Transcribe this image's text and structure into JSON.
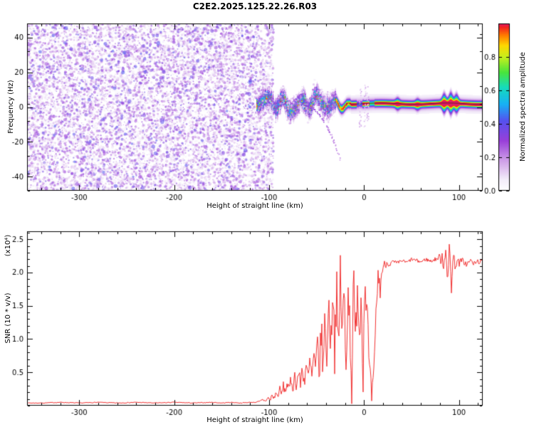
{
  "title": "C2E2.2025.125.22.26.R03",
  "chart_data": [
    {
      "type": "heatmap",
      "id": "spectrogram",
      "title": "C2E2.2025.125.22.26.R03",
      "xlabel": "Height of straight line (km)",
      "ylabel": "Frequency (Hz)",
      "xlim": [
        -355,
        125
      ],
      "ylim": [
        -48,
        48
      ],
      "xticks": [
        -300,
        -200,
        -100,
        0,
        100
      ],
      "xtick_labels": [
        "-300",
        "-200",
        "-100",
        "0",
        "100"
      ],
      "x_minor_step": 20,
      "yticks": [
        -40,
        -20,
        0,
        20,
        40
      ],
      "ytick_labels": [
        "-40",
        "-20",
        "0",
        "20",
        "40"
      ],
      "y_minor_step": 10,
      "grid": false,
      "colorbar": {
        "label": "Normalized spectral amplitude",
        "range": [
          0,
          1
        ],
        "tick_values": [
          0,
          0.2,
          0.4,
          0.6,
          0.8
        ],
        "tick_labels": [
          "0.0",
          "0.2",
          "0.4",
          "0.6",
          "0.8"
        ]
      },
      "colormap_stops": [
        [
          0,
          "#ffffff"
        ],
        [
          0.07,
          "#f3ecf9"
        ],
        [
          0.18,
          "#cfa0e8"
        ],
        [
          0.3,
          "#993fd9"
        ],
        [
          0.42,
          "#5551ef"
        ],
        [
          0.52,
          "#17b2f5"
        ],
        [
          0.62,
          "#16dcbc"
        ],
        [
          0.71,
          "#49e43c"
        ],
        [
          0.8,
          "#c6ef1e"
        ],
        [
          0.87,
          "#fed801"
        ],
        [
          0.93,
          "#ff7d00"
        ],
        [
          0.98,
          "#f32121"
        ],
        [
          1,
          "#dd1a67"
        ]
      ],
      "noise_region": {
        "x_start": -355,
        "x_end": -112,
        "amplitude_range": [
          0.05,
          0.4
        ],
        "description": "dense purple speckle noise across all frequencies"
      },
      "signal": {
        "center_frequency_hz": 2,
        "turbulent_range_km": [
          -112,
          -30
        ],
        "narrow_range_km": [
          -30,
          125
        ],
        "peak_amplitude": 0.97,
        "descending_tail": {
          "x_from_km": -63,
          "x_to_km": -25,
          "f_from_hz": 1,
          "f_to_hz": -30
        }
      }
    },
    {
      "type": "line",
      "id": "snr",
      "xlabel": "Height of straight line (km)",
      "ylabel": "SNR (10 * v/v)",
      "scale_label": "(x10⁴)",
      "xlim": [
        -355,
        125
      ],
      "ylim": [
        0,
        2.62
      ],
      "xticks": [
        -300,
        -200,
        -100,
        0,
        100
      ],
      "xtick_labels": [
        "-300",
        "-200",
        "-100",
        "0",
        "100"
      ],
      "x_minor_step": 20,
      "yticks": [
        0.5,
        1,
        1.5,
        2,
        2.5
      ],
      "ytick_labels": [
        "0.5",
        "1.0",
        "1.5",
        "2.0",
        "2.5"
      ],
      "y_minor_step": 0.1,
      "grid": false,
      "line_color": "#f03131",
      "points": [
        [
          -355,
          0.04
        ],
        [
          -340,
          0.04
        ],
        [
          -320,
          0.05
        ],
        [
          -300,
          0.04
        ],
        [
          -280,
          0.05
        ],
        [
          -260,
          0.04
        ],
        [
          -240,
          0.05
        ],
        [
          -220,
          0.04
        ],
        [
          -200,
          0.05
        ],
        [
          -180,
          0.04
        ],
        [
          -160,
          0.05
        ],
        [
          -150,
          0.04
        ],
        [
          -140,
          0.05
        ],
        [
          -130,
          0.04
        ],
        [
          -120,
          0.05
        ],
        [
          -115,
          0.05
        ],
        [
          -110,
          0.06
        ],
        [
          -107,
          0.09
        ],
        [
          -104,
          0.07
        ],
        [
          -101,
          0.12
        ],
        [
          -99,
          0.08
        ],
        [
          -97,
          0.16
        ],
        [
          -95,
          0.1
        ],
        [
          -93,
          0.2
        ],
        [
          -91,
          0.13
        ],
        [
          -89,
          0.26
        ],
        [
          -87,
          0.16
        ],
        [
          -85,
          0.3
        ],
        [
          -83,
          0.2
        ],
        [
          -81,
          0.35
        ],
        [
          -79,
          0.22
        ],
        [
          -77,
          0.4
        ],
        [
          -75,
          0.26
        ],
        [
          -73,
          0.45
        ],
        [
          -71,
          0.3
        ],
        [
          -69,
          0.52
        ],
        [
          -67,
          0.32
        ],
        [
          -65,
          0.58
        ],
        [
          -63,
          0.35
        ],
        [
          -61,
          0.62
        ],
        [
          -59,
          0.38
        ],
        [
          -57,
          0.66
        ],
        [
          -55,
          0.4
        ],
        [
          -53,
          0.75
        ],
        [
          -51,
          0.45
        ],
        [
          -49,
          0.95
        ],
        [
          -47,
          0.5
        ],
        [
          -45,
          1.15
        ],
        [
          -43,
          0.55
        ],
        [
          -41,
          1.4
        ],
        [
          -39,
          0.6
        ],
        [
          -37,
          1.7
        ],
        [
          -35,
          0.75
        ],
        [
          -33,
          1.95
        ],
        [
          -31,
          0.85
        ],
        [
          -29,
          1.8
        ],
        [
          -27,
          0.6
        ],
        [
          -25,
          2.05
        ],
        [
          -23,
          1.0
        ],
        [
          -21,
          1.75
        ],
        [
          -19,
          0.45
        ],
        [
          -17,
          1.95
        ],
        [
          -15,
          1.2
        ],
        [
          -13,
          0.35
        ],
        [
          -11,
          1.85
        ],
        [
          -9,
          0.8
        ],
        [
          -7,
          2.05
        ],
        [
          -5,
          1.0
        ],
        [
          -3,
          1.75
        ],
        [
          -1,
          0.6
        ],
        [
          1,
          2.0
        ],
        [
          3,
          1.5
        ],
        [
          5,
          0.7
        ],
        [
          7,
          0.18
        ],
        [
          9,
          0.14
        ],
        [
          11,
          0.55
        ],
        [
          13,
          1.6
        ],
        [
          15,
          1.95
        ],
        [
          17,
          1.75
        ],
        [
          19,
          2.05
        ],
        [
          21,
          2.1
        ],
        [
          24,
          2.15
        ],
        [
          27,
          2.12
        ],
        [
          30,
          2.16
        ],
        [
          35,
          2.14
        ],
        [
          40,
          2.18
        ],
        [
          45,
          2.15
        ],
        [
          50,
          2.2
        ],
        [
          55,
          2.18
        ],
        [
          60,
          2.16
        ],
        [
          65,
          2.2
        ],
        [
          70,
          2.17
        ],
        [
          75,
          2.2
        ],
        [
          80,
          2.22
        ],
        [
          82,
          2.28
        ],
        [
          84,
          2.12
        ],
        [
          86,
          2.52
        ],
        [
          88,
          1.62
        ],
        [
          90,
          2.45
        ],
        [
          92,
          1.85
        ],
        [
          94,
          2.25
        ],
        [
          96,
          2.1
        ],
        [
          98,
          2.18
        ],
        [
          100,
          2.14
        ],
        [
          104,
          2.18
        ],
        [
          108,
          2.12
        ],
        [
          112,
          2.18
        ],
        [
          116,
          2.13
        ],
        [
          120,
          2.17
        ],
        [
          125,
          2.15
        ]
      ],
      "noise_envelope": [
        [
          -355,
          0.006
        ],
        [
          -115,
          0.006
        ],
        [
          -105,
          0.02
        ],
        [
          -90,
          0.05
        ],
        [
          -75,
          0.09
        ],
        [
          -60,
          0.14
        ],
        [
          -45,
          0.28
        ],
        [
          -30,
          0.38
        ],
        [
          -15,
          0.4
        ],
        [
          0,
          0.4
        ],
        [
          6,
          0.25
        ],
        [
          12,
          0.3
        ],
        [
          18,
          0.12
        ],
        [
          25,
          0.04
        ],
        [
          40,
          0.025
        ],
        [
          78,
          0.03
        ],
        [
          84,
          0.22
        ],
        [
          90,
          0.25
        ],
        [
          96,
          0.07
        ],
        [
          110,
          0.04
        ],
        [
          125,
          0.04
        ]
      ]
    }
  ]
}
